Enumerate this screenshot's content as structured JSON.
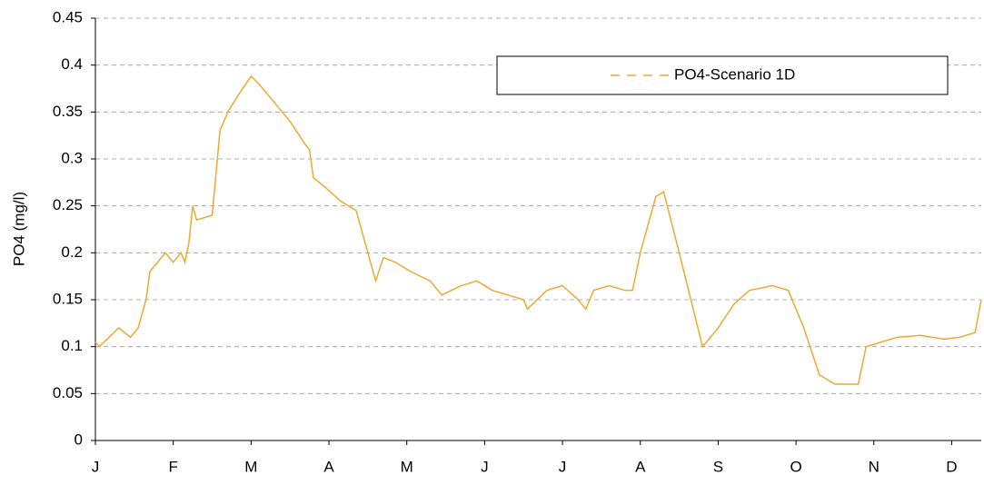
{
  "chart_data": {
    "type": "line",
    "ylabel": "PO4 (mg/l)",
    "x": [
      0,
      0.05,
      0.3,
      0.45,
      0.55,
      0.65,
      0.7,
      0.8,
      0.9,
      1.0,
      1.1,
      1.15,
      1.2,
      1.25,
      1.3,
      1.5,
      1.6,
      1.7,
      1.85,
      2.0,
      2.1,
      2.3,
      2.5,
      2.7,
      2.75,
      2.8,
      2.95,
      3.15,
      3.35,
      3.5,
      3.6,
      3.7,
      3.85,
      4.05,
      4.3,
      4.45,
      4.7,
      4.9,
      5.1,
      5.3,
      5.5,
      5.55,
      5.8,
      6.0,
      6.2,
      6.3,
      6.4,
      6.6,
      6.8,
      6.9,
      7.0,
      7.2,
      7.3,
      7.5,
      7.8,
      8.0,
      8.2,
      8.4,
      8.7,
      8.9,
      9.1,
      9.3,
      9.5,
      9.8,
      9.9,
      10.1,
      10.3,
      10.6,
      10.9,
      11.1,
      11.3,
      11.38
    ],
    "series": [
      {
        "name": "PO4-Scenario 1D",
        "color": "#f0a830",
        "values": [
          0.105,
          0.1,
          0.12,
          0.11,
          0.12,
          0.15,
          0.18,
          0.19,
          0.2,
          0.19,
          0.2,
          0.19,
          0.21,
          0.25,
          0.235,
          0.24,
          0.33,
          0.35,
          0.37,
          0.388,
          0.38,
          0.36,
          0.34,
          0.315,
          0.31,
          0.28,
          0.27,
          0.255,
          0.245,
          0.2,
          0.17,
          0.195,
          0.19,
          0.18,
          0.17,
          0.155,
          0.165,
          0.17,
          0.16,
          0.155,
          0.15,
          0.14,
          0.16,
          0.165,
          0.15,
          0.14,
          0.16,
          0.165,
          0.16,
          0.16,
          0.2,
          0.26,
          0.265,
          0.2,
          0.1,
          0.12,
          0.145,
          0.16,
          0.165,
          0.16,
          0.12,
          0.07,
          0.06,
          0.06,
          0.1,
          0.105,
          0.11,
          0.112,
          0.108,
          0.11,
          0.115,
          0.15
        ]
      }
    ],
    "xlim": [
      0,
      11.38
    ],
    "xticks": [
      {
        "value": 0,
        "label": "J"
      },
      {
        "value": 1,
        "label": "F"
      },
      {
        "value": 2,
        "label": "M"
      },
      {
        "value": 3,
        "label": "A"
      },
      {
        "value": 4,
        "label": "M"
      },
      {
        "value": 5,
        "label": "J"
      },
      {
        "value": 6,
        "label": "J"
      },
      {
        "value": 7,
        "label": "A"
      },
      {
        "value": 8,
        "label": "S"
      },
      {
        "value": 9,
        "label": "O"
      },
      {
        "value": 10,
        "label": "N"
      },
      {
        "value": 11,
        "label": "D"
      }
    ],
    "ylim": [
      0,
      0.45
    ],
    "yticks": [
      0,
      0.05,
      0.1,
      0.15,
      0.2,
      0.25,
      0.3,
      0.35,
      0.4,
      0.45
    ],
    "grid": true,
    "legend": "upper right"
  }
}
